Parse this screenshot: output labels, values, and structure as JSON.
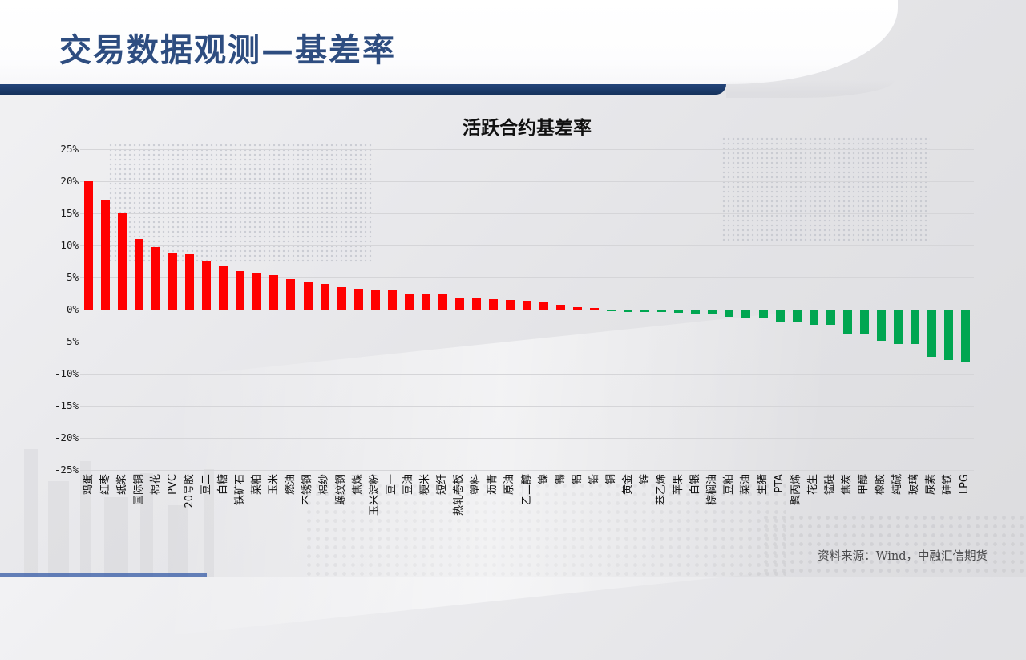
{
  "slide": {
    "title": "交易数据观测—基差率",
    "source": "资料来源：Wind，中融汇信期货",
    "accent_navy": "#1b3a68",
    "title_color": "#2e4d80"
  },
  "chart_data": {
    "type": "bar",
    "title": "活跃合约基差率",
    "xlabel": "",
    "ylabel": "",
    "ylim": [
      -25,
      25
    ],
    "ytick_step": 5,
    "ytick_labels": [
      "25%",
      "20%",
      "15%",
      "10%",
      "5%",
      "0%",
      "-5%",
      "-10%",
      "-15%",
      "-20%",
      "-25%"
    ],
    "grid": true,
    "legend": "none",
    "bar_colors": {
      "positive": "#FF0000",
      "negative": "#00A651"
    },
    "categories": [
      "鸡蛋",
      "红枣",
      "纸浆",
      "国际铜",
      "棉花",
      "PVC",
      "20号胶",
      "豆二",
      "白糖",
      "铁矿石",
      "菜粕",
      "玉米",
      "燃油",
      "不锈钢",
      "棉纱",
      "螺纹钢",
      "焦煤",
      "玉米淀粉",
      "豆一",
      "豆油",
      "粳米",
      "短纤",
      "热轧卷板",
      "塑料",
      "沥青",
      "原油",
      "乙二醇",
      "镍",
      "锡",
      "铝",
      "铅",
      "铜",
      "黄金",
      "锌",
      "苯乙烯",
      "苹果",
      "白银",
      "棕榈油",
      "豆粕",
      "菜油",
      "生猪",
      "PTA",
      "聚丙烯",
      "花生",
      "锰硅",
      "焦炭",
      "甲醇",
      "橡胶",
      "纯碱",
      "玻璃",
      "尿素",
      "硅铁",
      "LPG"
    ],
    "values": [
      20.0,
      17.0,
      15.0,
      11.0,
      9.8,
      8.7,
      8.6,
      7.5,
      6.8,
      6.0,
      5.8,
      5.4,
      4.8,
      4.3,
      4.0,
      3.5,
      3.3,
      3.1,
      3.0,
      2.5,
      2.4,
      2.35,
      1.75,
      1.7,
      1.6,
      1.45,
      1.4,
      1.2,
      0.7,
      0.35,
      0.2,
      -0.1,
      -0.2,
      -0.3,
      -0.3,
      -0.4,
      -0.6,
      -0.65,
      -1.0,
      -1.1,
      -1.3,
      -1.8,
      -1.9,
      -2.2,
      -2.3,
      -3.6,
      -3.75,
      -4.75,
      -5.3,
      -5.2,
      -7.2,
      -7.8,
      -8.1
    ]
  }
}
